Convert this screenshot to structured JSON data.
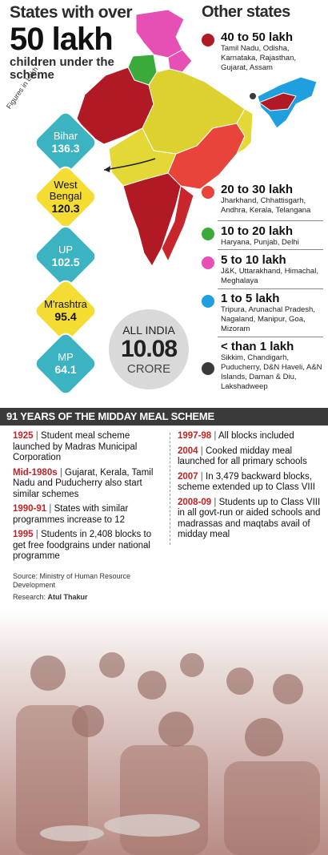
{
  "header": {
    "left_line1": "States with over",
    "left_big": "50 lakh",
    "left_sub": "children under the scheme",
    "right_title": "Other states"
  },
  "figures_note": "Figures in Lakh",
  "big_states": [
    {
      "name": "Bihar",
      "value": "136.3",
      "color": "teal"
    },
    {
      "name": "West Bengal",
      "value": "120.3",
      "color": "yellow"
    },
    {
      "name": "UP",
      "value": "102.5",
      "color": "teal"
    },
    {
      "name": "M'rashtra",
      "value": "95.4",
      "color": "yellow"
    },
    {
      "name": "MP",
      "value": "64.1",
      "color": "teal"
    }
  ],
  "all_india": {
    "label": "ALL INDIA",
    "value": "10.08",
    "unit": "CRORE"
  },
  "legend": [
    {
      "range": "40 to 50 lakh",
      "states": "Tamil Nadu, Odisha, Karnataka, Rajasthan, Gujarat, Assam",
      "color": "#b11a24"
    },
    {
      "range": "20 to 30 lakh",
      "states": "Jharkhand, Chhattisgarh, Andhra, Kerala, Telangana",
      "color": "#e8443a"
    },
    {
      "range": "10 to 20 lakh",
      "states": "Haryana, Punjab, Delhi",
      "color": "#3aab3a"
    },
    {
      "range": "5 to 10 lakh",
      "states": "J&K, Uttarakhand, Himachal, Meghalaya",
      "color": "#e64fb3"
    },
    {
      "range": "1 to 5 lakh",
      "states": "Tripura, Arunachal Pradesh, Nagaland, Manipur, Goa, Mizoram",
      "color": "#1e9fe0"
    },
    {
      "range": "< than 1 lakh",
      "states": "Sikkim, Chandigarh, Puducherry, D&N Haveli, A&N Islands, Daman & Diu, Lakshadweep",
      "color": "#3a3a3a"
    }
  ],
  "timeline_title": "91 YEARS OF THE MIDDAY MEAL SCHEME",
  "timeline_left": [
    {
      "year": "1925",
      "text": "Student meal scheme launched by Madras Municipal Corporation"
    },
    {
      "year": "Mid-1980s",
      "text": "Gujarat, Kerala, Tamil Nadu and Puducherry also start similar schemes"
    },
    {
      "year": "1990-91",
      "text": "States with similar programmes increase to 12"
    },
    {
      "year": "1995",
      "text": "Students in 2,408 blocks to get free foodgrains under national programme"
    }
  ],
  "timeline_right": [
    {
      "year": "1997-98",
      "text": "All blocks included"
    },
    {
      "year": "2004",
      "text": "Cooked midday meal launched for all primary schools"
    },
    {
      "year": "2007",
      "text": "In 3,479 backward blocks, scheme extended up to Class VIII"
    },
    {
      "year": "2008-09",
      "text": "Students up to Class VIII in all govt-run or aided schools and madrassas and maqtabs avail of midday meal"
    }
  ],
  "source": "Source: Ministry of Human Resource Development",
  "research_label": "Research:",
  "research_name": "Atul Thakur",
  "colors": {
    "teal": "#3bb3c0",
    "yellow": "#f4dc32",
    "year_red": "#c42323",
    "banner": "#3a3a3a"
  }
}
